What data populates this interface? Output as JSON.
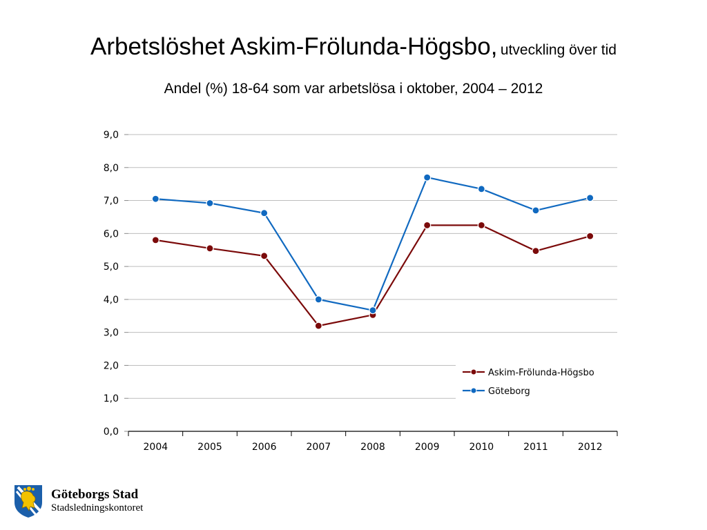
{
  "slide": {
    "title_main": "Arbetslöshet Askim-Frölunda-Högsbo,",
    "title_sub": "utveckling över tid",
    "subtitle": "Andel (%) 18-64 som var arbetslösa i oktober, 2004 – 2012"
  },
  "chart_data": {
    "type": "line",
    "title": "",
    "xlabel": "",
    "ylabel": "",
    "categories": [
      "2004",
      "2005",
      "2006",
      "2007",
      "2008",
      "2009",
      "2010",
      "2011",
      "2012"
    ],
    "ylim": [
      0,
      9
    ],
    "ytick_step": 1,
    "ytick_labels": [
      "0,0",
      "1,0",
      "2,0",
      "3,0",
      "4,0",
      "5,0",
      "6,0",
      "7,0",
      "8,0",
      "9,0"
    ],
    "grid": true,
    "legend_position": "bottom-right",
    "series": [
      {
        "name": "Askim-Frölunda-Högsbo",
        "color": "#7b0a0a",
        "values": [
          5.8,
          5.55,
          5.32,
          3.2,
          3.53,
          6.25,
          6.25,
          5.47,
          5.92
        ]
      },
      {
        "name": "Göteborg",
        "color": "#1069c0",
        "values": [
          7.05,
          6.92,
          6.62,
          4.0,
          3.67,
          7.7,
          7.35,
          6.7,
          7.08
        ]
      }
    ]
  },
  "logo": {
    "name": "Göteborgs Stad",
    "unit": "Stadsledningskontoret",
    "icon": "goteborg-lion-shield-icon",
    "colors": {
      "blue": "#1b5faa",
      "gold": "#f2c200"
    }
  }
}
